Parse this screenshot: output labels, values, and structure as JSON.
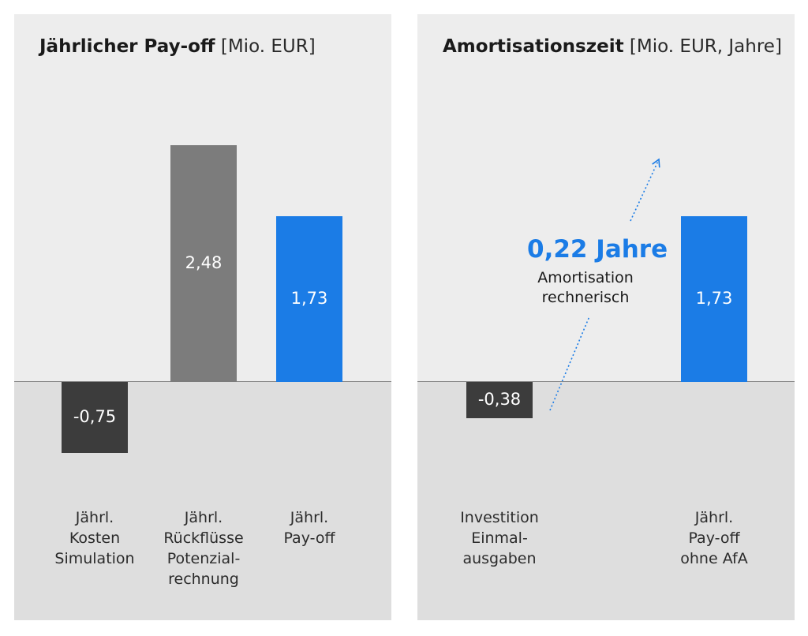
{
  "colors": {
    "dark": "#3c3c3c",
    "gray": "#7c7c7c",
    "blue": "#1b7ce6"
  },
  "chart_data": [
    {
      "type": "bar",
      "title": "Jährlicher Pay-off",
      "unit": "[Mio. EUR]",
      "categories": [
        "Jährl.\nKosten\nSimulation",
        "Jährl.\nRückflüsse\nPotenzial-\nrechnung",
        "Jährl.\nPay-off"
      ],
      "values": [
        -0.75,
        2.48,
        1.73
      ],
      "value_labels": [
        "-0,75",
        "2,48",
        "1,73"
      ],
      "bar_colors": [
        "dark",
        "gray",
        "blue"
      ],
      "ylim": [
        -1.07,
        3.08
      ]
    },
    {
      "type": "bar",
      "title": "Amortisationszeit",
      "unit": "[Mio. EUR, Jahre]",
      "categories": [
        "Investition\nEinmal-\nausgaben",
        "Jährl.\nPay-off\nohne AfA"
      ],
      "values": [
        -0.38,
        1.73
      ],
      "value_labels": [
        "-0,38",
        "1,73"
      ],
      "bar_colors": [
        "dark",
        "blue"
      ],
      "ylim": [
        -1.07,
        3.08
      ],
      "annotation": {
        "value": "0,22 Jahre",
        "text": "Amortisation\nrechnerisch"
      }
    }
  ]
}
